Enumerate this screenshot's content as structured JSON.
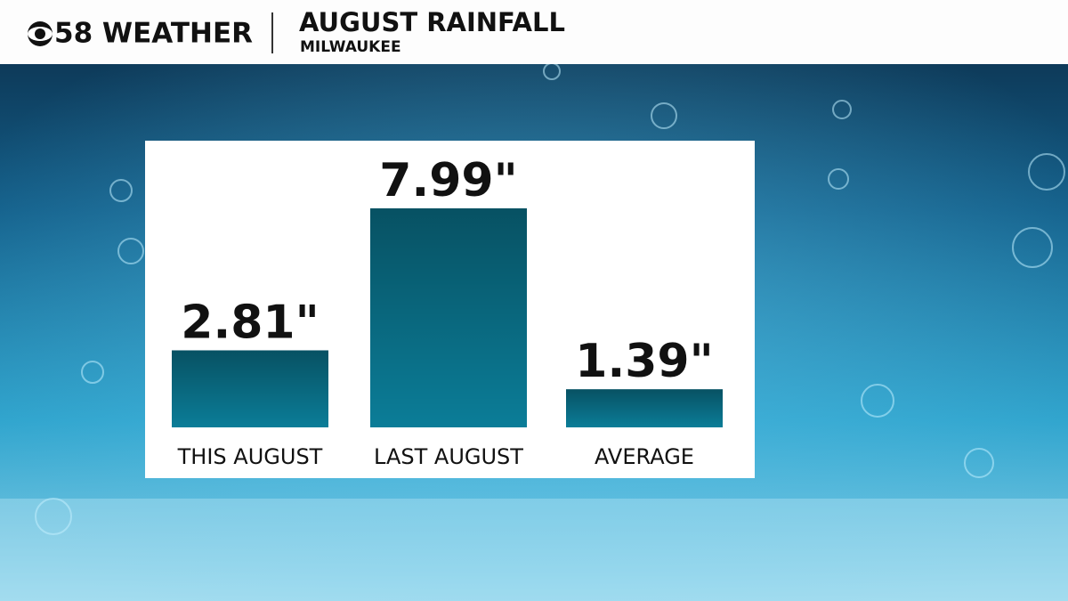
{
  "header": {
    "brand": "58 WEATHER",
    "title": "AUGUST RAINFALL",
    "subtitle": "MILWAUKEE"
  },
  "chart_data": {
    "type": "bar",
    "categories": [
      "THIS AUGUST",
      "LAST AUGUST",
      "AVERAGE"
    ],
    "values": [
      2.81,
      7.99,
      1.39
    ],
    "value_labels": [
      "2.81\"",
      "7.99\"",
      "1.39\""
    ],
    "color": "#0b7d98"
  }
}
